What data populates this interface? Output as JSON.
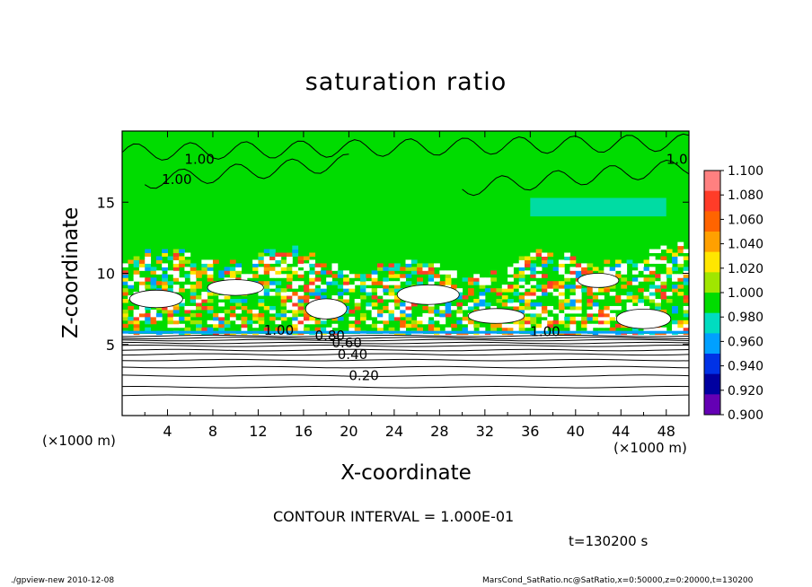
{
  "page": {
    "x_unit_left": "(×1000 m)",
    "x_unit_right": "(×1000 m)",
    "contour_interval": "CONTOUR INTERVAL = 1.000E-01",
    "time_label": "t=130200 s",
    "footer_left": "./gpview-new   2010-12-08",
    "footer_right": "MarsCond_SatRatio.nc@SatRatio,x=0:50000,z=0:20000,t=130200"
  },
  "chart_data": {
    "type": "heatmap",
    "title": "saturation ratio",
    "xlabel": "X-coordinate",
    "ylabel": "Z-coordinate",
    "xlim": [
      0,
      50
    ],
    "ylim": [
      0,
      20
    ],
    "x_ticks": [
      4,
      8,
      12,
      16,
      20,
      24,
      28,
      32,
      36,
      40,
      44,
      48
    ],
    "y_ticks": [
      5,
      10,
      15
    ],
    "colorbar": {
      "labels": [
        "1.100",
        "1.080",
        "1.060",
        "1.040",
        "1.020",
        "1.000",
        "0.980",
        "0.960",
        "0.940",
        "0.920",
        "0.900"
      ],
      "colors": [
        "#ff8080",
        "#ff3c28",
        "#ff6400",
        "#ffa000",
        "#ffe600",
        "#a0e600",
        "#00dc00",
        "#00dcc0",
        "#00a0ff",
        "#0032e6",
        "#0000a0",
        "#6400b4"
      ]
    },
    "contour_levels": [
      0.2,
      0.4,
      0.6,
      0.8,
      1.0
    ],
    "contour_labels": [
      "0.20",
      "0.40",
      "0.60",
      "0.80",
      "1.00",
      "1.00",
      "1.00",
      "1.00",
      "1.00"
    ],
    "lower_contour_heights": [
      1.4,
      2.0,
      2.8,
      3.4,
      3.9,
      4.3,
      4.6,
      4.9,
      5.1,
      5.3,
      5.45,
      5.6
    ],
    "cloud_layer_range": [
      5.7,
      11.0
    ],
    "background_value": 1.0,
    "subsaturated_patch": {
      "x_range": [
        36,
        48
      ],
      "z_range": [
        14.0,
        15.3
      ]
    }
  }
}
